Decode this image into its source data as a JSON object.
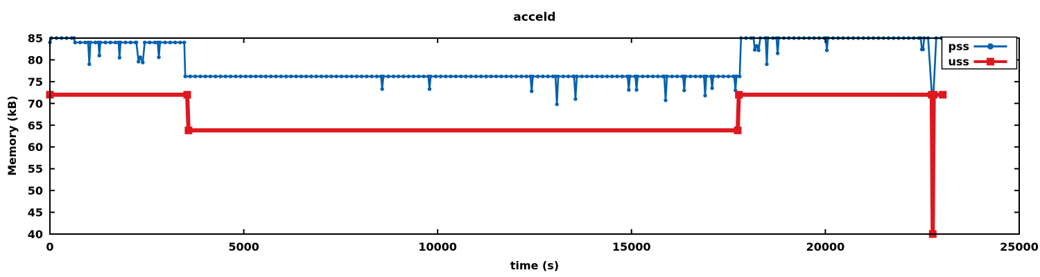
{
  "title": "acceld",
  "axes": {
    "x": {
      "label": "time (s)",
      "min": 0,
      "max": 25000,
      "ticks": [
        0,
        5000,
        10000,
        15000,
        20000,
        25000
      ]
    },
    "y": {
      "label": "Memory (kB)",
      "min": 40,
      "max": 85,
      "ticks": [
        40,
        45,
        50,
        55,
        60,
        65,
        70,
        75,
        80,
        85
      ]
    }
  },
  "colors": {
    "pss": "#0060ad",
    "uss": "#dd181f",
    "axis": "#000000",
    "background": "#ffffff"
  },
  "legend": {
    "position": "top-right",
    "entries": [
      {
        "label": "pss",
        "color": "#0060ad",
        "marker": "circle"
      },
      {
        "label": "uss",
        "color": "#dd181f",
        "marker": "square"
      }
    ]
  },
  "chart_data": {
    "type": "line",
    "title": "acceld",
    "xlabel": "time (s)",
    "ylabel": "Memory (kB)",
    "xlim": [
      0,
      25000
    ],
    "ylim": [
      40,
      85
    ],
    "grid": false,
    "legend_position": "top-right",
    "series": [
      {
        "name": "pss",
        "color": "#0060ad",
        "marker": "circle",
        "line_width": 2.6,
        "points": [
          [
            0,
            84
          ],
          [
            40,
            85
          ],
          [
            620,
            85
          ],
          [
            650,
            84
          ],
          [
            985,
            84
          ],
          [
            1015,
            79
          ],
          [
            1045,
            84
          ],
          [
            1250,
            84
          ],
          [
            1275,
            81
          ],
          [
            1300,
            84
          ],
          [
            1770,
            84
          ],
          [
            1795,
            80.5
          ],
          [
            1820,
            84
          ],
          [
            2230,
            84
          ],
          [
            2285,
            79.6
          ],
          [
            2330,
            80.6
          ],
          [
            2395,
            79.4
          ],
          [
            2445,
            84
          ],
          [
            2780,
            84
          ],
          [
            2810,
            80.6
          ],
          [
            2840,
            84
          ],
          [
            3465,
            84
          ],
          [
            3490,
            76.2
          ],
          [
            8540,
            76.2
          ],
          [
            8570,
            73.3
          ],
          [
            8600,
            76.2
          ],
          [
            9760,
            76.2
          ],
          [
            9790,
            73.3
          ],
          [
            9820,
            76.2
          ],
          [
            12395,
            76.2
          ],
          [
            12425,
            72.8
          ],
          [
            12455,
            76.2
          ],
          [
            13040,
            76.2
          ],
          [
            13075,
            69.8
          ],
          [
            13110,
            76.2
          ],
          [
            13520,
            76.2
          ],
          [
            13555,
            71
          ],
          [
            13590,
            76.2
          ],
          [
            14900,
            76.2
          ],
          [
            14930,
            73.1
          ],
          [
            14960,
            76.2
          ],
          [
            15100,
            76.2
          ],
          [
            15130,
            73.1
          ],
          [
            15160,
            76.2
          ],
          [
            15845,
            76.2
          ],
          [
            15880,
            70.7
          ],
          [
            15915,
            76.2
          ],
          [
            16330,
            76.2
          ],
          [
            16360,
            73
          ],
          [
            16390,
            76.2
          ],
          [
            16870,
            76.2
          ],
          [
            16900,
            71.8
          ],
          [
            16930,
            76.2
          ],
          [
            17050,
            76.2
          ],
          [
            17080,
            73.5
          ],
          [
            17110,
            76.2
          ],
          [
            17650,
            76.2
          ],
          [
            17680,
            73
          ],
          [
            17710,
            76.2
          ],
          [
            17790,
            76.2
          ],
          [
            17825,
            85
          ],
          [
            18150,
            85
          ],
          [
            18180,
            82.3
          ],
          [
            18230,
            83.2
          ],
          [
            18280,
            82.2
          ],
          [
            18320,
            85
          ],
          [
            18460,
            85
          ],
          [
            18490,
            79
          ],
          [
            18520,
            85
          ],
          [
            18740,
            85
          ],
          [
            18770,
            81.5
          ],
          [
            18800,
            85
          ],
          [
            20010,
            85
          ],
          [
            20040,
            82.2
          ],
          [
            20070,
            85
          ],
          [
            22460,
            85
          ],
          [
            22490,
            82.4
          ],
          [
            22520,
            82.4
          ],
          [
            22550,
            85
          ],
          [
            22650,
            85
          ],
          [
            22770,
            69
          ],
          [
            22860,
            85
          ],
          [
            23000,
            85
          ]
        ]
      },
      {
        "name": "uss",
        "color": "#dd181f",
        "marker": "square",
        "line_width": 6,
        "points": [
          [
            0,
            72
          ],
          [
            3540,
            72
          ],
          [
            3575,
            63.8
          ],
          [
            17740,
            63.8
          ],
          [
            17770,
            72
          ],
          [
            22745,
            72
          ],
          [
            22770,
            40
          ],
          [
            22795,
            72
          ],
          [
            23030,
            72
          ]
        ]
      }
    ]
  }
}
